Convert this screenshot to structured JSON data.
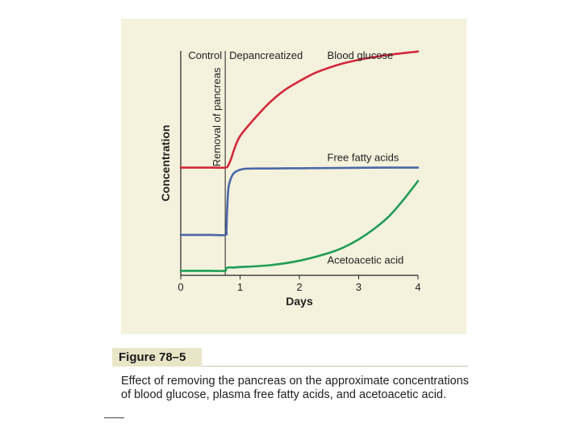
{
  "chart_data": {
    "type": "line",
    "title": "",
    "xlabel": "Days",
    "ylabel": "Concentration",
    "xlim": [
      0,
      4
    ],
    "ylim": [
      0,
      100
    ],
    "xticks": [
      0,
      1,
      2,
      3,
      4
    ],
    "grid": false,
    "annotations": {
      "control_label": "Control",
      "depancreatized_label": "Depancreatized",
      "event_label": "Removal of pancreas",
      "event_x": 0.75
    },
    "series": [
      {
        "name": "Blood glucose",
        "color": "#d3283c",
        "x": [
          0,
          0.5,
          0.75,
          0.8,
          0.85,
          0.9,
          1.0,
          1.25,
          1.5,
          1.75,
          2.0,
          2.25,
          2.5,
          2.75,
          3.0,
          3.25,
          3.5,
          3.75,
          4.0
        ],
        "y": [
          48,
          48,
          48,
          49,
          52,
          56,
          62,
          70,
          77,
          82.5,
          86.5,
          90,
          92.5,
          94.5,
          96,
          97.2,
          98.2,
          99,
          99.7
        ]
      },
      {
        "name": "Free fatty acids",
        "color": "#4a68a8",
        "x": [
          0,
          0.5,
          0.75,
          0.77,
          0.78,
          0.8,
          0.83,
          0.88,
          0.95,
          1.1,
          1.5,
          2.0,
          2.5,
          3.0,
          3.5,
          4.0
        ],
        "y": [
          18,
          18,
          18,
          20,
          28,
          38,
          42,
          45,
          46.5,
          47.5,
          47.6,
          47.7,
          47.8,
          47.9,
          48,
          48
        ]
      },
      {
        "name": "Acetoacetic acid",
        "color": "#1f9d55",
        "x": [
          0,
          0.5,
          0.74,
          0.76,
          0.8,
          0.9,
          1.0,
          1.5,
          2.0,
          2.5,
          2.75,
          3.0,
          3.25,
          3.5,
          3.75,
          4.0
        ],
        "y": [
          2,
          2,
          2,
          3,
          3.5,
          3.5,
          3.7,
          4.5,
          6.5,
          10,
          12.5,
          16,
          20.5,
          26,
          33.5,
          42
        ]
      }
    ]
  },
  "figure": {
    "label": "Figure 78–5",
    "caption": "Effect of removing the pancreas on the approximate concentrations of blood glucose, plasma free fatty acids, and acetoacetic acid."
  }
}
